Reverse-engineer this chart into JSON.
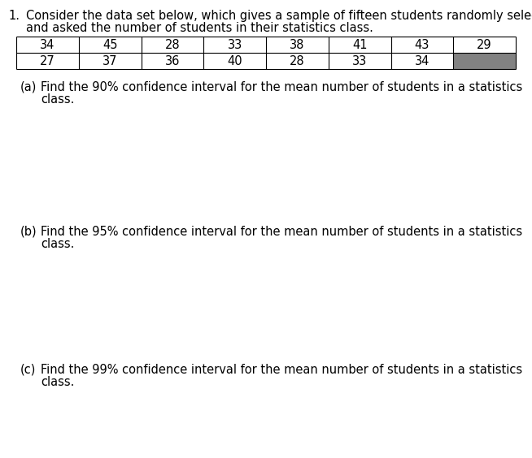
{
  "background_color": "#ffffff",
  "number_label": "1.",
  "intro_text_line1": "Consider the data set below, which gives a sample of fifteen students randomly selected",
  "intro_text_line2": "and asked the number of students in their statistics class.",
  "table_row1": [
    34,
    45,
    28,
    33,
    38,
    41,
    43,
    29
  ],
  "table_row2": [
    27,
    37,
    36,
    40,
    28,
    33,
    34,
    null
  ],
  "shaded_cell_color": "#828282",
  "part_a_label": "(a)",
  "part_a_text_line1": "Find the 90% confidence interval for the mean number of students in a statistics",
  "part_a_text_line2": "class.",
  "part_b_label": "(b)",
  "part_b_text_line1": "Find the 95% confidence interval for the mean number of students in a statistics",
  "part_b_text_line2": "class.",
  "part_c_label": "(c)",
  "part_c_text_line1": "Find the 99% confidence interval for the mean number of students in a statistics",
  "part_c_text_line2": "class.",
  "font_size_main": 10.5,
  "font_size_table": 10.5,
  "table_line_color": "#000000",
  "text_color": "#000000",
  "font_family": "DejaVu Sans",
  "fig_width": 6.54,
  "fig_height": 5.64,
  "dpi": 100
}
